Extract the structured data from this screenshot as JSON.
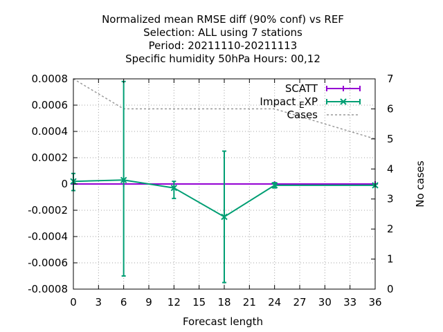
{
  "chart_data": {
    "type": "line",
    "title_lines": [
      "Normalized mean RMSE diff (90% conf) vs REF",
      "Selection: ALL using     7 stations",
      "Period: 20211110-20211113",
      "Specific humidity 50hPa   Hours:  00,12"
    ],
    "xlabel": "Forecast length",
    "ylabel": "",
    "y2label": "No cases",
    "xlim": [
      0,
      36
    ],
    "ylim": [
      -0.0008,
      0.0008
    ],
    "y2lim": [
      0,
      7
    ],
    "x_ticks": [
      "0",
      "3",
      "6",
      "9",
      "12",
      "15",
      "18",
      "21",
      "24",
      "27",
      "30",
      "33",
      "36"
    ],
    "y_ticks": [
      "-0.0008",
      "-0.0006",
      "-0.0004",
      "-0.0002",
      "0",
      "0.0002",
      "0.0004",
      "0.0006",
      "0.0008"
    ],
    "y2_ticks": [
      "0",
      "1",
      "2",
      "3",
      "4",
      "5",
      "6",
      "7"
    ],
    "grid": true,
    "legend_position": "top-right",
    "colors": {
      "scatt": "#9400d3",
      "impact": "#009e73",
      "cases": "#999999"
    },
    "series": [
      {
        "name": "SCATT",
        "x": [
          0,
          6,
          12,
          18,
          24,
          36
        ],
        "y": [
          0,
          0,
          0,
          0,
          0,
          0
        ],
        "err_low": [
          0,
          0,
          0,
          0,
          0,
          0
        ],
        "err_high": [
          0,
          0,
          0,
          0,
          0,
          0
        ]
      },
      {
        "name": "Impact_EXP",
        "x": [
          0,
          6,
          12,
          18,
          24,
          36
        ],
        "y": [
          2e-05,
          3e-05,
          -3e-05,
          -0.00025,
          -1e-05,
          -1e-05
        ],
        "err_low": [
          -5e-05,
          -0.0007,
          -0.00011,
          -0.00075,
          -3e-05,
          -2e-05
        ],
        "err_high": [
          8e-05,
          0.00078,
          2e-05,
          0.00025,
          1e-05,
          0.0
        ]
      },
      {
        "name": "Cases",
        "axis": "y2",
        "x": [
          0,
          6,
          12,
          18,
          24,
          30,
          36
        ],
        "y": [
          7,
          6,
          6,
          6,
          6,
          5.5,
          5
        ]
      }
    ]
  }
}
